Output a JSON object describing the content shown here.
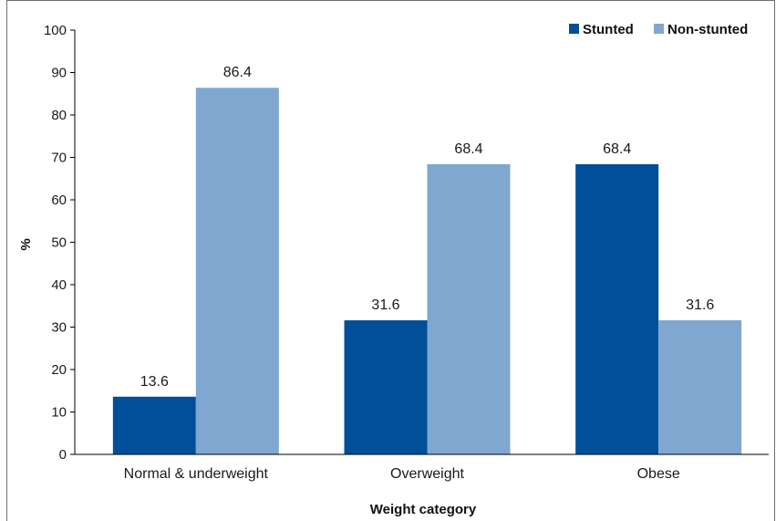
{
  "chart_data": {
    "type": "bar",
    "categories": [
      "Normal & underweight",
      "Overweight",
      "Obese"
    ],
    "series": [
      {
        "name": "Stunted",
        "values": [
          13.6,
          31.6,
          68.4
        ],
        "color": "#004f98"
      },
      {
        "name": "Non-stunted",
        "values": [
          86.4,
          68.4,
          31.6
        ],
        "color": "#7fa7cf"
      }
    ],
    "xlabel": "Weight category",
    "ylabel": "%",
    "ylim": [
      0,
      100
    ],
    "yticks": [
      0,
      10,
      20,
      30,
      40,
      50,
      60,
      70,
      80,
      90,
      100
    ],
    "grid": false,
    "legend_position": "top-right"
  }
}
